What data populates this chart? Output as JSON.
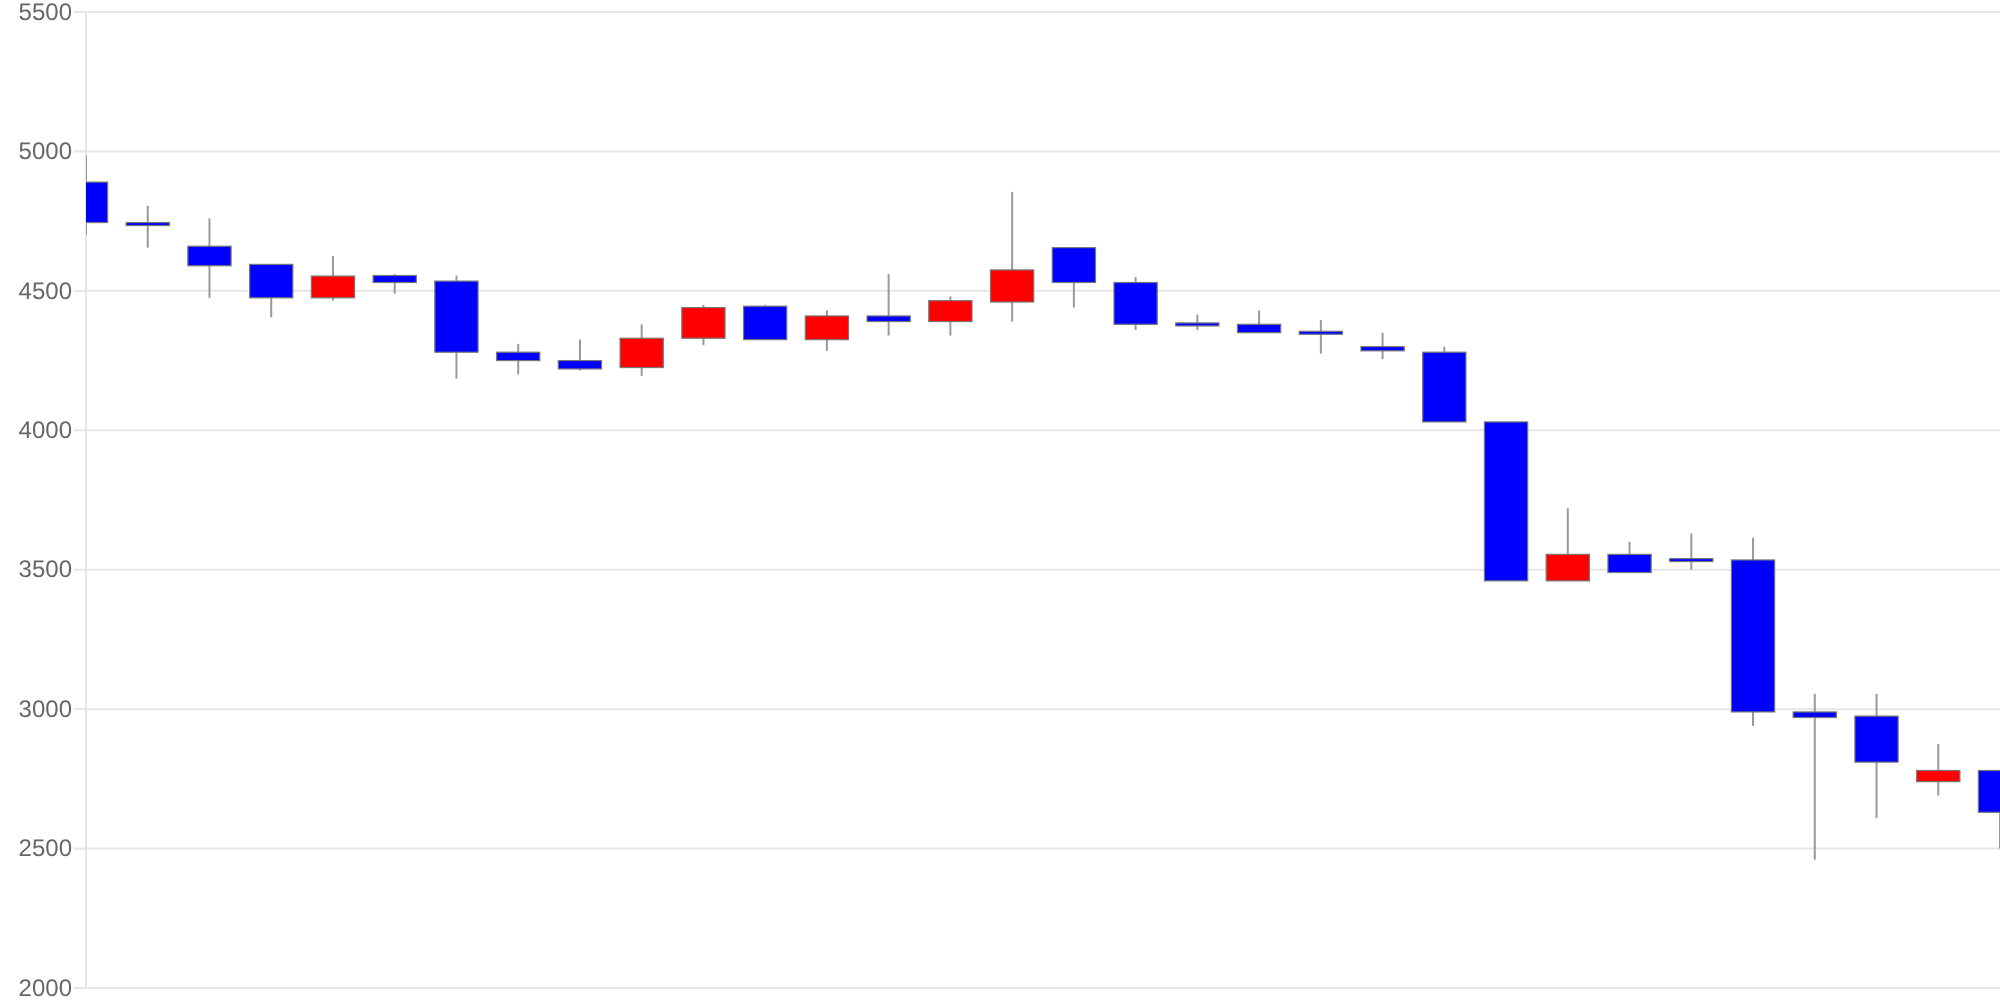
{
  "chart_data": {
    "type": "candlestick",
    "categories": [
      null,
      null,
      null,
      null,
      null,
      null,
      null,
      null,
      null,
      null,
      null,
      null,
      null,
      null,
      null,
      null,
      null,
      null,
      null,
      null,
      null,
      null,
      null,
      null,
      null,
      null,
      null,
      null,
      null,
      null,
      null,
      null
    ],
    "ohlc": [
      [
        4890,
        4985,
        4700,
        4745
      ],
      [
        4745,
        4805,
        4655,
        4740
      ],
      [
        4660,
        4760,
        4475,
        4590
      ],
      [
        4595,
        4595,
        4405,
        4475
      ],
      [
        4475,
        4625,
        4465,
        4553
      ],
      [
        4555,
        4560,
        4490,
        4530
      ],
      [
        4535,
        4555,
        4185,
        4280
      ],
      [
        4280,
        4310,
        4200,
        4250
      ],
      [
        4250,
        4325,
        4215,
        4220
      ],
      [
        4225,
        4380,
        4195,
        4330
      ],
      [
        4330,
        4450,
        4305,
        4440
      ],
      [
        4445,
        4450,
        4325,
        4325
      ],
      [
        4325,
        4430,
        4285,
        4410
      ],
      [
        4410,
        4560,
        4340,
        4390
      ],
      [
        4390,
        4480,
        4340,
        4465
      ],
      [
        4460,
        4855,
        4390,
        4575
      ],
      [
        4655,
        4655,
        4440,
        4530
      ],
      [
        4530,
        4550,
        4360,
        4380
      ],
      [
        4385,
        4415,
        4360,
        4380
      ],
      [
        4380,
        4430,
        4350,
        4350
      ],
      [
        4355,
        4395,
        4275,
        4350
      ],
      [
        4300,
        4350,
        4255,
        4285
      ],
      [
        4280,
        4300,
        4030,
        4030
      ],
      [
        4030,
        4030,
        3460,
        3460
      ],
      [
        3460,
        3720,
        3460,
        3555
      ],
      [
        3555,
        3600,
        3490,
        3490
      ],
      [
        3540,
        3630,
        3500,
        3535
      ],
      [
        3535,
        3615,
        2940,
        2990
      ],
      [
        2990,
        3055,
        2460,
        2970
      ],
      [
        2975,
        3055,
        2610,
        2810
      ],
      [
        2740,
        2875,
        2690,
        2780
      ],
      [
        2780,
        2780,
        2500,
        2630
      ]
    ],
    "colors": [
      "#0000ff",
      "#0000ff",
      "#0000ff",
      "#0000ff",
      "#ff0000",
      "#0000ff",
      "#0000ff",
      "#0000ff",
      "#0000ff",
      "#ff0000",
      "#ff0000",
      "#0000ff",
      "#ff0000",
      "#0000ff",
      "#ff0000",
      "#ff0000",
      "#0000ff",
      "#0000ff",
      "#0000ff",
      "#0000ff",
      "#0000ff",
      "#0000ff",
      "#0000ff",
      "#0000ff",
      "#ff0000",
      "#0000ff",
      "#0000ff",
      "#0000ff",
      "#0000ff",
      "#0000ff",
      "#ff0000",
      "#0000ff"
    ],
    "ylim": [
      2000,
      5500
    ],
    "yticks": [
      2000,
      2500,
      3000,
      3500,
      4000,
      4500,
      5000,
      5500
    ],
    "grid": "y",
    "tick_labels": "y"
  }
}
